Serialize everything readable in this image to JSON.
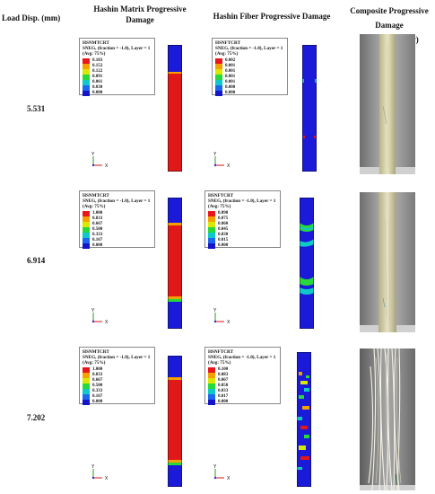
{
  "headers": {
    "load_disp": "Load Disp. (mm)",
    "matrix": "Hashin Matrix Progressive Damage",
    "fiber": "Hashin Fiber Progressive Damage",
    "composite": "Composite Progressive Damage (Experimentally)"
  },
  "rows": [
    {
      "disp": "5.531",
      "matrix": {
        "title1": "HSNMTCRT",
        "title2": "SNEG, (fraction = -1.0), Layer = 1",
        "title3": "(Avg: 75%)",
        "values": [
          "0.183",
          "0.152",
          "0.122",
          "0.091",
          "0.061",
          "0.030",
          "0.000"
        ]
      },
      "fiber": {
        "title1": "HSNFTCRT",
        "title2": "SNEG, (fraction = -1.0), Layer = 1",
        "title3": "(Avg: 75%)",
        "values": [
          "0.002",
          "0.001",
          "0.001",
          "0.001",
          "0.001",
          "0.000",
          "0.000"
        ]
      }
    },
    {
      "disp": "6.914",
      "matrix": {
        "title1": "HSNMTCRT",
        "title2": "SNEG, (fraction = -1.0), Layer = 1",
        "title3": "(Avg: 75%)",
        "values": [
          "1.000",
          "0.833",
          "0.667",
          "0.500",
          "0.333",
          "0.167",
          "0.000"
        ]
      },
      "fiber": {
        "title1": "HSNFTCRT",
        "title2": "SNEG, (fraction = -1.0), Layer = 1",
        "title3": "(Avg: 75%)",
        "values": [
          "0.090",
          "0.075",
          "0.060",
          "0.045",
          "0.030",
          "0.015",
          "0.000"
        ]
      }
    },
    {
      "disp": "7.202",
      "matrix": {
        "title1": "HSNMTCRT",
        "title2": "SNEG, (fraction = -1.0), Layer = 1",
        "title3": "(Avg: 75%)",
        "values": [
          "1.000",
          "0.833",
          "0.667",
          "0.500",
          "0.333",
          "0.167",
          "0.000"
        ]
      },
      "fiber": {
        "title1": "HSNFTCRT",
        "title2": "SNEG, (fraction = -1.0), Layer = 1",
        "title3": "(Avg: 75%)",
        "values": [
          "0.100",
          "0.083",
          "0.067",
          "0.050",
          "0.033",
          "0.017",
          "0.000"
        ]
      }
    }
  ],
  "axis_labels": {
    "y": "Y",
    "x": "X"
  },
  "colors": {
    "legend": [
      "#e8171a",
      "#f5a000",
      "#d9e800",
      "#27d93a",
      "#0fc8c8",
      "#1c66f0",
      "#1414c8"
    ],
    "beam_blue": "#1a1ad8",
    "beam_red": "#e01818"
  }
}
